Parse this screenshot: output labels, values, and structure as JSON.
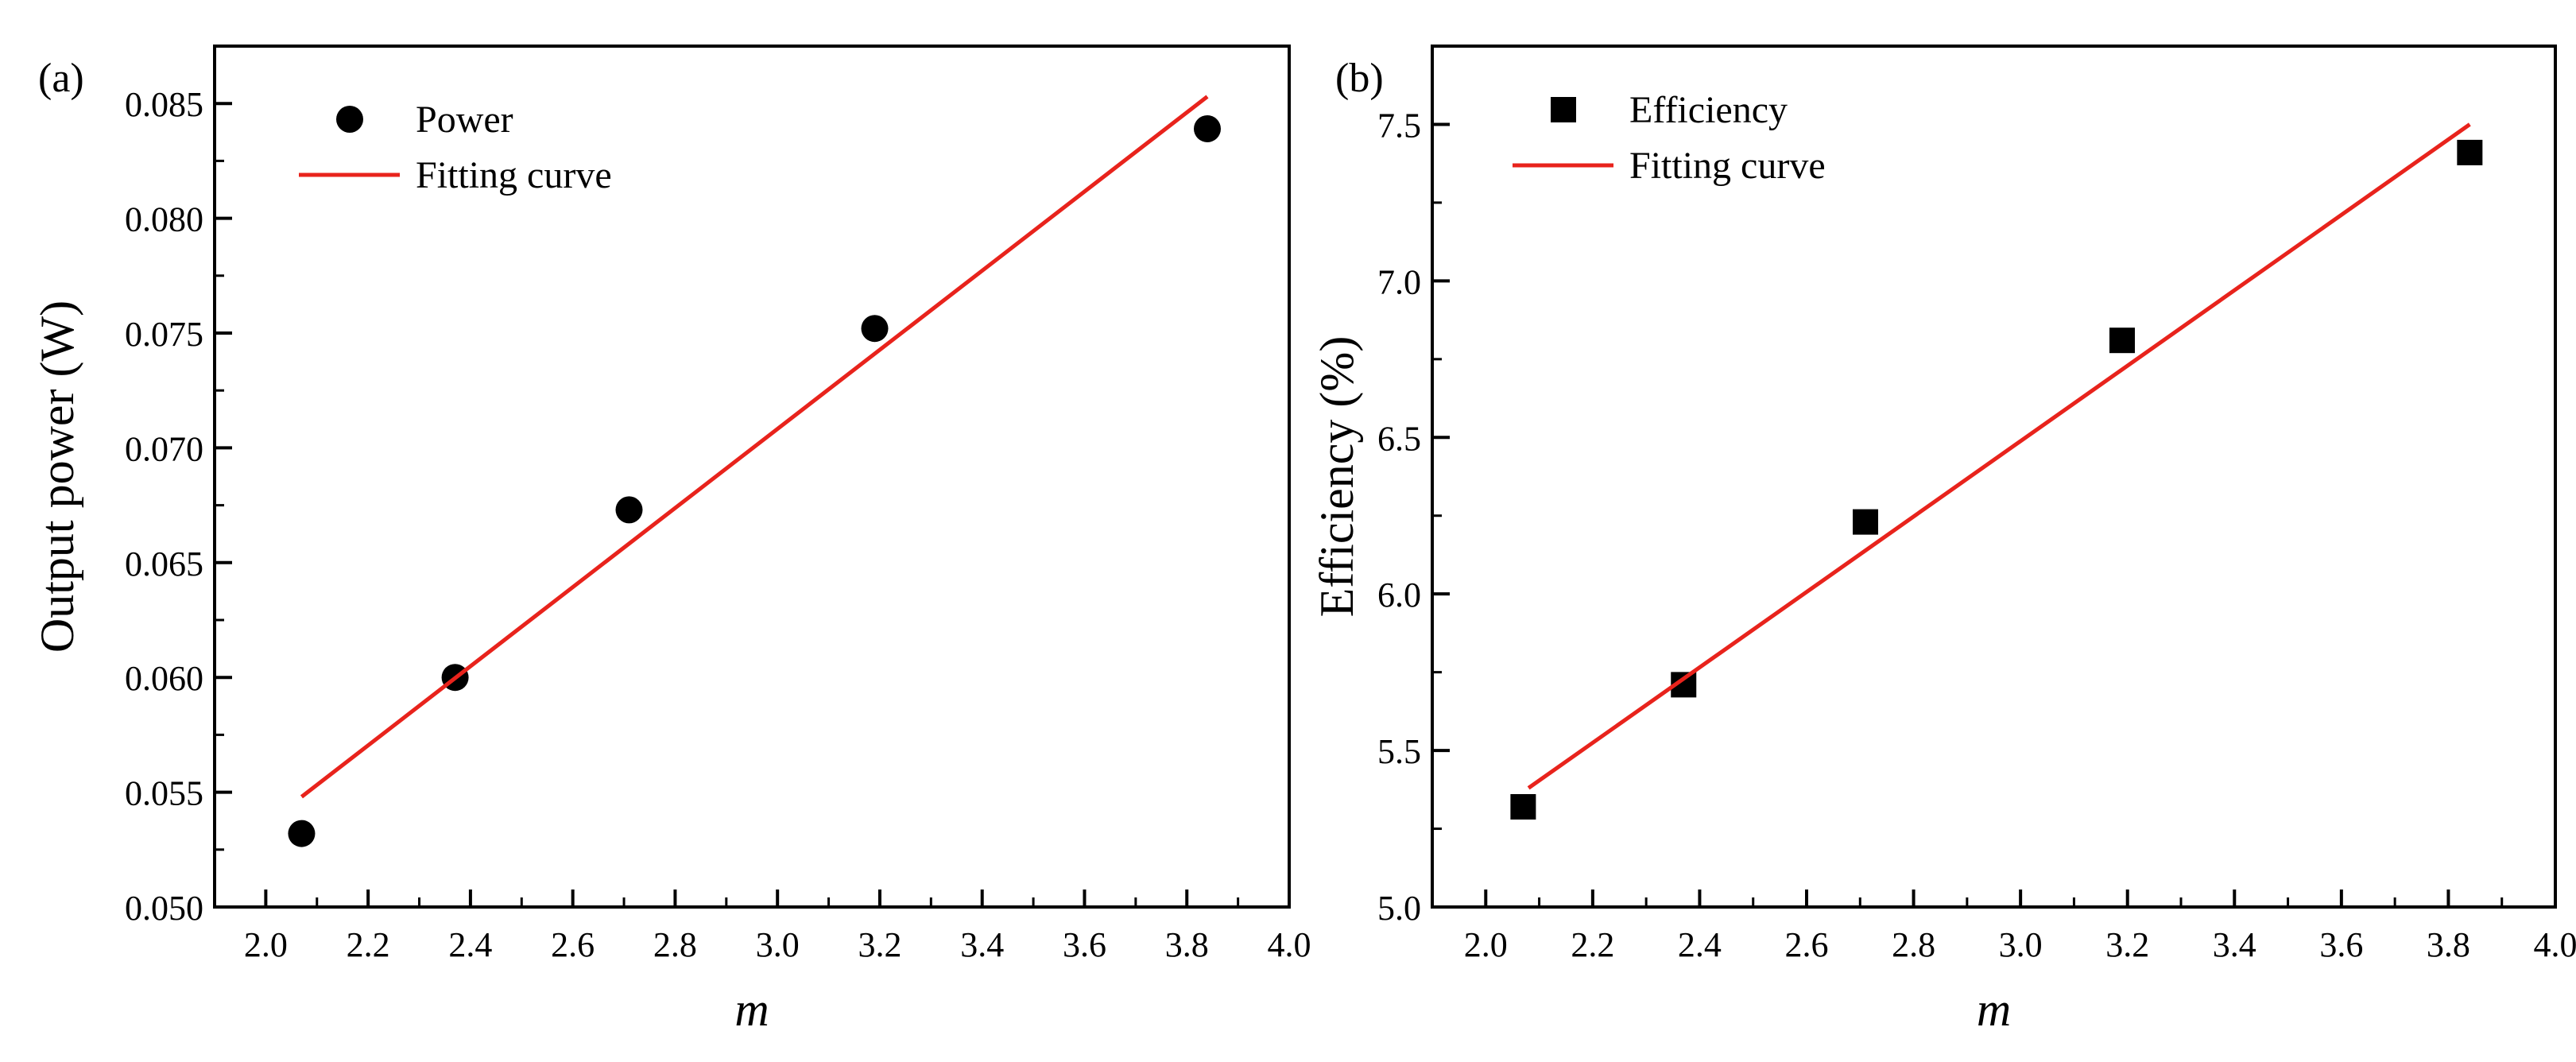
{
  "chart_data": [
    {
      "type": "scatter",
      "panel_label": "(a)",
      "title": "",
      "xlabel": "m",
      "ylabel": "Output power (W)",
      "xlim": [
        1.9,
        4.0
      ],
      "ylim": [
        0.05,
        0.0875
      ],
      "xticks": [
        2.0,
        2.2,
        2.4,
        2.6,
        2.8,
        3.0,
        3.2,
        3.4,
        3.6,
        3.8,
        4.0
      ],
      "xtick_labels": [
        "2.0",
        "2.2",
        "2.4",
        "2.6",
        "2.8",
        "3.0",
        "3.2",
        "3.4",
        "3.6",
        "3.8",
        "4.0"
      ],
      "yticks": [
        0.05,
        0.055,
        0.06,
        0.065,
        0.07,
        0.075,
        0.08,
        0.085
      ],
      "ytick_labels": [
        "0.050",
        "0.055",
        "0.060",
        "0.065",
        "0.070",
        "0.075",
        "0.080",
        "0.085"
      ],
      "grid": false,
      "legend_position": "top-left",
      "series": [
        {
          "name": "Power",
          "kind": "points",
          "marker": "circle",
          "color": "#000000",
          "x": [
            2.07,
            2.37,
            2.71,
            3.19,
            3.84
          ],
          "y": [
            0.0532,
            0.06,
            0.0673,
            0.0752,
            0.0839
          ]
        },
        {
          "name": "Fitting curve",
          "kind": "line",
          "color": "#e8231c",
          "x": [
            2.07,
            3.84
          ],
          "y": [
            0.0548,
            0.0853
          ]
        }
      ]
    },
    {
      "type": "scatter",
      "panel_label": "(b)",
      "title": "",
      "xlabel": "m",
      "ylabel": "Efficiency (%)",
      "xlim": [
        1.9,
        4.0
      ],
      "ylim": [
        5.0,
        7.75
      ],
      "xticks": [
        2.0,
        2.2,
        2.4,
        2.6,
        2.8,
        3.0,
        3.2,
        3.4,
        3.6,
        3.8,
        4.0
      ],
      "xtick_labels": [
        "2.0",
        "2.2",
        "2.4",
        "2.6",
        "2.8",
        "3.0",
        "3.2",
        "3.4",
        "3.6",
        "3.8",
        "4.0"
      ],
      "yticks": [
        5.0,
        5.5,
        6.0,
        6.5,
        7.0,
        7.5
      ],
      "ytick_labels": [
        "5.0",
        "5.5",
        "6.0",
        "6.5",
        "7.0",
        "7.5"
      ],
      "grid": false,
      "legend_position": "top-left",
      "series": [
        {
          "name": "Efficiency",
          "kind": "points",
          "marker": "square",
          "color": "#000000",
          "x": [
            2.07,
            2.37,
            2.71,
            3.19,
            3.84
          ],
          "y": [
            5.32,
            5.71,
            6.23,
            6.81,
            7.41
          ]
        },
        {
          "name": "Fitting curve",
          "kind": "line",
          "color": "#e8231c",
          "x": [
            2.08,
            3.84
          ],
          "y": [
            5.38,
            7.5
          ]
        }
      ]
    }
  ]
}
